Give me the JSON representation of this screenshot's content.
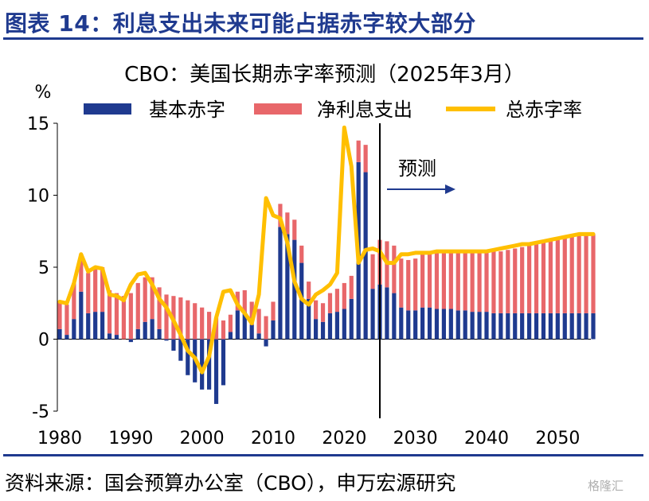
{
  "figure_title": "图表 14：利息支出未来可能占据赤字较大部分",
  "source_note": "资料来源：国会预算办公室（CBO），申万宏源研究",
  "watermark": "格隆汇",
  "colors": {
    "primary_deficit": "#1f3a8f",
    "net_interest": "#e8676a",
    "total_deficit": "#ffbf00",
    "title_blue": "#1f3a8f"
  },
  "chart_data": {
    "type": "bar",
    "title": "CBO：美国长期赤字率预测（2025年3月）",
    "ylabel": "%",
    "ylim": [
      -5,
      15
    ],
    "yticks": [
      -5,
      0,
      5,
      10,
      15
    ],
    "xlim": [
      1980,
      2055
    ],
    "xticks": [
      1980,
      1990,
      2000,
      2010,
      2020,
      2030,
      2040,
      2050
    ],
    "legend_position": "top",
    "forecast_start": 2025,
    "forecast_label": "预测",
    "x": [
      1980,
      1981,
      1982,
      1983,
      1984,
      1985,
      1986,
      1987,
      1988,
      1989,
      1990,
      1991,
      1992,
      1993,
      1994,
      1995,
      1996,
      1997,
      1998,
      1999,
      2000,
      2001,
      2002,
      2003,
      2004,
      2005,
      2006,
      2007,
      2008,
      2009,
      2010,
      2011,
      2012,
      2013,
      2014,
      2015,
      2016,
      2017,
      2018,
      2019,
      2020,
      2021,
      2022,
      2023,
      2024,
      2025,
      2026,
      2027,
      2028,
      2029,
      2030,
      2031,
      2032,
      2033,
      2034,
      2035,
      2036,
      2037,
      2038,
      2039,
      2040,
      2041,
      2042,
      2043,
      2044,
      2045,
      2046,
      2047,
      2048,
      2049,
      2050,
      2051,
      2052,
      2053,
      2054,
      2055
    ],
    "series": [
      {
        "name": "基本赤字",
        "type": "bar",
        "values": [
          0.7,
          0.3,
          1.4,
          3.3,
          1.8,
          1.9,
          1.9,
          0.4,
          0.3,
          0.0,
          -0.2,
          0.7,
          1.2,
          1.4,
          0.7,
          -0.1,
          -0.8,
          -1.5,
          -2.5,
          -3.0,
          -3.5,
          -3.5,
          -4.5,
          -3.2,
          0.5,
          2.0,
          1.9,
          1.0,
          0.4,
          -0.5,
          1.3,
          7.8,
          7.3,
          6.9,
          5.3,
          2.8,
          1.4,
          1.2,
          1.8,
          1.9,
          2.1,
          2.8,
          12.3,
          11.6,
          3.5,
          3.8,
          3.6,
          3.2,
          2.2,
          2.0,
          2.0,
          2.2,
          2.2,
          2.1,
          2.1,
          2.1,
          2.0,
          2.0,
          1.9,
          1.9,
          1.9,
          1.8,
          1.8,
          1.8,
          1.8,
          1.8,
          1.8,
          1.8,
          1.8,
          1.8,
          1.8,
          1.8,
          1.8,
          1.8,
          1.8,
          1.8
        ]
      },
      {
        "name": "净利息支出",
        "type": "bar",
        "values": [
          1.9,
          2.1,
          2.5,
          2.6,
          2.8,
          3.0,
          3.1,
          3.0,
          2.9,
          3.0,
          3.2,
          3.2,
          3.1,
          2.9,
          2.9,
          3.1,
          3.0,
          2.9,
          2.7,
          2.5,
          2.2,
          1.9,
          1.5,
          1.3,
          1.2,
          1.3,
          1.5,
          1.6,
          1.7,
          1.6,
          1.3,
          1.6,
          1.5,
          1.4,
          1.2,
          1.2,
          1.3,
          1.3,
          1.4,
          1.6,
          1.8,
          1.6,
          1.5,
          1.9,
          2.4,
          3.1,
          3.2,
          3.3,
          3.4,
          3.5,
          3.6,
          3.7,
          3.8,
          3.9,
          4.0,
          4.0,
          4.1,
          4.1,
          4.2,
          4.2,
          4.2,
          4.3,
          4.3,
          4.4,
          4.5,
          4.6,
          4.7,
          4.8,
          4.9,
          5.0,
          5.1,
          5.2,
          5.3,
          5.4,
          5.4,
          5.5
        ]
      },
      {
        "name": "总赤字率",
        "type": "line",
        "values": [
          2.6,
          2.5,
          3.9,
          5.9,
          4.7,
          5.0,
          4.9,
          3.1,
          3.0,
          2.7,
          3.8,
          4.5,
          4.6,
          3.8,
          2.8,
          2.2,
          1.3,
          0.3,
          -0.8,
          -1.3,
          -2.3,
          -1.2,
          1.5,
          3.3,
          3.4,
          2.4,
          1.8,
          1.1,
          3.1,
          9.8,
          8.6,
          8.4,
          6.7,
          4.0,
          2.8,
          2.4,
          3.1,
          3.4,
          3.8,
          4.6,
          14.7,
          12.0,
          5.3,
          6.2,
          6.3,
          6.1,
          5.3,
          5.3,
          5.9,
          5.9,
          6.0,
          6.0,
          6.0,
          6.1,
          6.1,
          6.1,
          6.1,
          6.1,
          6.1,
          6.1,
          6.1,
          6.2,
          6.3,
          6.4,
          6.5,
          6.6,
          6.6,
          6.7,
          6.8,
          6.9,
          7.0,
          7.1,
          7.2,
          7.3,
          7.3,
          7.3
        ]
      }
    ]
  }
}
